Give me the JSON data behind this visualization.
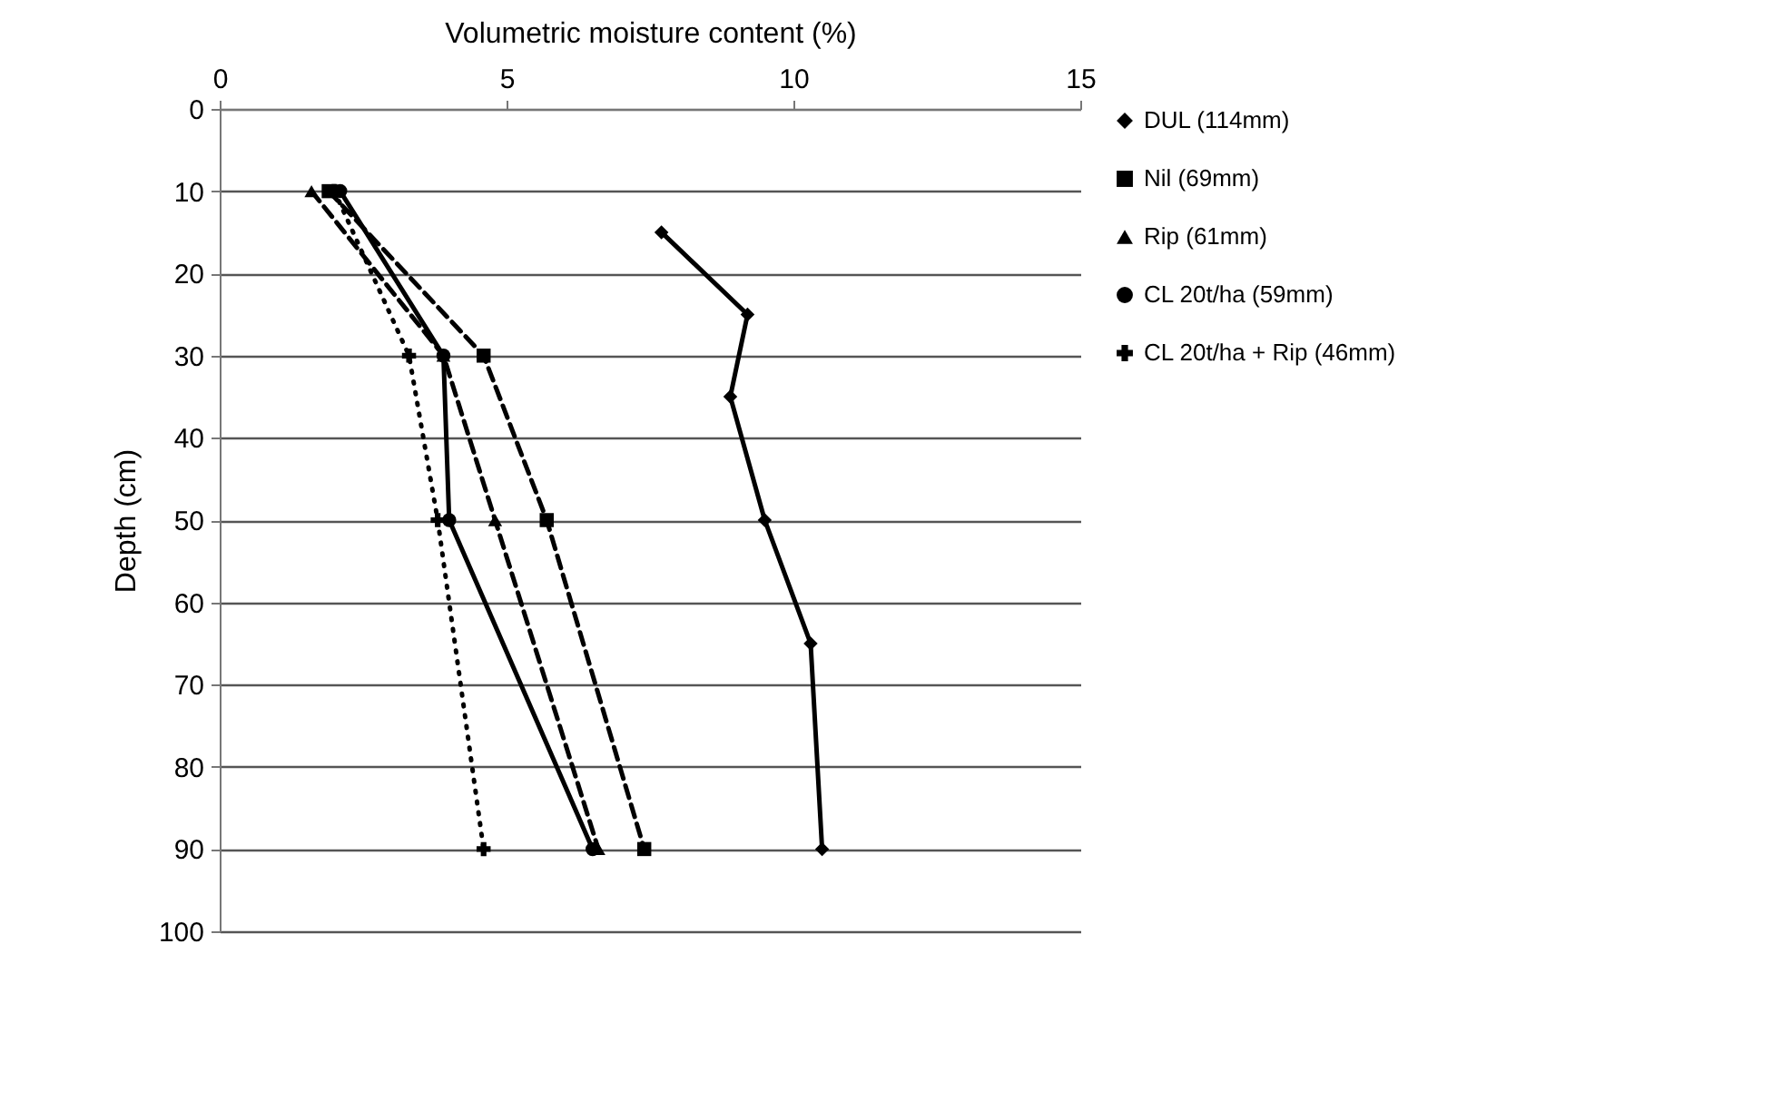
{
  "chart_data": {
    "type": "line",
    "orientation": "horizontal",
    "xlabel": "Volumetric moisture content (%)",
    "ylabel": "Depth (cm)",
    "xlim": [
      0,
      15
    ],
    "xticks": [
      0,
      5,
      10,
      15
    ],
    "ylim": [
      100,
      0
    ],
    "yticks": [
      0,
      10,
      20,
      30,
      40,
      50,
      60,
      70,
      80,
      90,
      100
    ],
    "grid": "y",
    "legend": "right",
    "series": [
      {
        "name": "DUL (114mm)",
        "color": "#000000",
        "marker": "diamond",
        "line_style": "solid",
        "x": [
          15,
          25,
          35,
          50,
          65,
          90
        ],
        "values": [
          7.7,
          9.2,
          8.9,
          9.5,
          10.3,
          10.5
        ]
      },
      {
        "name": "Nil (69mm)",
        "color": "#000000",
        "marker": "square",
        "line_style": "dashed",
        "x": [
          10,
          30,
          50,
          90
        ],
        "values": [
          1.9,
          4.6,
          5.7,
          7.4
        ]
      },
      {
        "name": "Rip (61mm)",
        "color": "#000000",
        "marker": "triangle",
        "line_style": "dashed",
        "x": [
          10,
          30,
          50,
          90
        ],
        "values": [
          1.6,
          3.9,
          4.8,
          6.6
        ]
      },
      {
        "name": "CL 20t/ha (59mm)",
        "color": "#000000",
        "marker": "circle",
        "line_style": "solid",
        "x": [
          10,
          30,
          50,
          90
        ],
        "values": [
          2.1,
          3.9,
          4.0,
          6.5
        ]
      },
      {
        "name": "CL 20t/ha + Rip (46mm)",
        "color": "#000000",
        "marker": "cross",
        "line_style": "dotted",
        "x": [
          10,
          30,
          50,
          90
        ],
        "values": [
          2.0,
          3.3,
          3.8,
          4.6
        ]
      }
    ]
  }
}
